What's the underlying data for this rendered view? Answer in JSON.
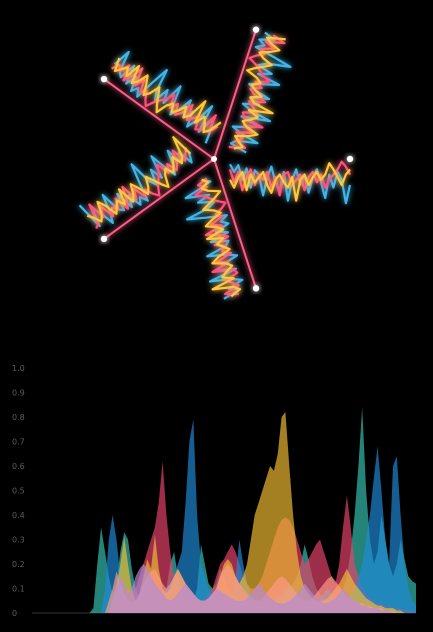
{
  "chart_data": [
    {
      "type": "radial-line",
      "arms": 5,
      "arm_angles_deg": [
        0,
        72,
        144,
        216,
        288
      ],
      "series": [
        {
          "color": "#3fb6e8",
          "values": [
            0.1,
            0.25,
            0.12,
            0.4,
            0.18,
            0.55,
            0.22,
            0.3,
            0.7,
            0.35,
            0.15,
            0.45,
            0.6,
            0.25,
            0.8,
            0.4,
            0.2,
            0.5,
            0.3,
            0.65,
            0.35,
            0.2,
            0.45,
            0.75,
            0.3,
            0.55,
            0.25,
            0.4,
            0.85,
            0.5
          ]
        },
        {
          "color": "#ff4f7a",
          "values": [
            0.05,
            0.15,
            0.3,
            0.2,
            0.45,
            0.25,
            0.6,
            0.35,
            0.2,
            0.5,
            0.3,
            0.4,
            0.25,
            0.55,
            0.35,
            0.7,
            0.3,
            0.25,
            0.5,
            0.4,
            0.3,
            0.6,
            0.35,
            0.25,
            0.45,
            0.3,
            0.55,
            0.4,
            0.3,
            0.2
          ]
        },
        {
          "color": "#ffc640",
          "values": [
            0.08,
            0.2,
            0.35,
            0.5,
            0.3,
            0.2,
            0.4,
            0.55,
            0.35,
            0.25,
            0.6,
            0.3,
            0.45,
            0.35,
            0.25,
            0.5,
            0.65,
            0.4,
            0.3,
            0.45,
            0.55,
            0.35,
            0.8,
            0.4,
            0.3,
            0.5,
            0.35,
            0.25,
            0.4,
            0.3
          ]
        }
      ]
    },
    {
      "type": "area",
      "ylim": [
        0,
        1
      ],
      "yticks": [
        "0",
        "0.1",
        "0.2",
        "0.3",
        "0.4",
        "0.5",
        "0.6",
        "0.7",
        "0.8",
        "0.9",
        "1.0"
      ],
      "x": [
        0,
        1,
        2,
        3,
        4,
        5,
        6,
        7,
        8,
        9,
        10,
        11,
        12,
        13,
        14,
        15,
        16,
        17,
        18,
        19,
        20,
        21,
        22,
        23,
        24,
        25,
        26,
        27,
        28,
        29,
        30,
        31,
        32,
        33,
        34,
        35,
        36,
        37,
        38,
        39,
        40,
        41,
        42,
        43,
        44,
        45,
        46,
        47,
        48,
        49,
        50,
        51,
        52,
        53,
        54,
        55,
        56,
        57,
        58,
        59,
        60,
        61,
        62,
        63,
        64,
        65,
        66,
        67,
        68,
        69,
        70,
        71,
        72,
        73,
        74,
        75,
        76,
        77,
        78,
        79,
        80,
        81,
        82,
        83,
        84,
        85,
        86,
        87,
        88,
        89,
        90,
        91,
        92,
        93,
        94,
        95,
        96,
        97,
        98,
        99,
        100
      ],
      "series": [
        {
          "color": "#36c3b4",
          "values": [
            0,
            0,
            0,
            0,
            0,
            0,
            0,
            0,
            0,
            0,
            0,
            0,
            0,
            0,
            0,
            0,
            0.02,
            0.2,
            0.35,
            0.25,
            0.15,
            0.08,
            0.12,
            0.25,
            0.33,
            0.3,
            0.18,
            0.1,
            0.05,
            0.03,
            0.02,
            0.02,
            0.02,
            0.03,
            0.05,
            0.1,
            0.2,
            0.25,
            0.15,
            0.08,
            0.05,
            0.04,
            0.05,
            0.1,
            0.28,
            0.2,
            0.12,
            0.1,
            0.12,
            0.18,
            0.15,
            0.1,
            0.08,
            0.06,
            0.05,
            0.05,
            0.05,
            0.05,
            0.05,
            0.05,
            0.05,
            0.05,
            0.05,
            0.05,
            0.05,
            0.06,
            0.08,
            0.1,
            0.12,
            0.15,
            0.2,
            0.28,
            0.22,
            0.15,
            0.1,
            0.08,
            0.06,
            0.05,
            0.05,
            0.06,
            0.08,
            0.1,
            0.15,
            0.25,
            0.4,
            0.6,
            0.84,
            0.5,
            0.3,
            0.2,
            0.25,
            0.4,
            0.3,
            0.2,
            0.15,
            0.2,
            0.3,
            0.22,
            0.15,
            0.13,
            0.12
          ]
        },
        {
          "color": "#e8436a",
          "values": [
            0,
            0,
            0,
            0,
            0,
            0,
            0,
            0,
            0,
            0,
            0,
            0,
            0,
            0,
            0,
            0,
            0,
            0,
            0,
            0,
            0,
            0,
            0.02,
            0.05,
            0.08,
            0.1,
            0.08,
            0.1,
            0.15,
            0.2,
            0.25,
            0.3,
            0.35,
            0.45,
            0.62,
            0.4,
            0.25,
            0.15,
            0.1,
            0.08,
            0.06,
            0.05,
            0.05,
            0.05,
            0.05,
            0.06,
            0.08,
            0.1,
            0.15,
            0.2,
            0.22,
            0.25,
            0.28,
            0.25,
            0.2,
            0.15,
            0.12,
            0.1,
            0.1,
            0.12,
            0.15,
            0.2,
            0.25,
            0.3,
            0.35,
            0.38,
            0.39,
            0.38,
            0.35,
            0.3,
            0.25,
            0.2,
            0.22,
            0.25,
            0.28,
            0.3,
            0.25,
            0.2,
            0.15,
            0.12,
            0.2,
            0.35,
            0.48,
            0.35,
            0.2,
            0.15,
            0.1,
            0.08,
            0.06,
            0.05,
            0.04,
            0.04,
            0.03,
            0.03,
            0.02,
            0.02,
            0.02,
            0.01,
            0.01,
            0.01,
            0.0
          ]
        },
        {
          "color": "#1f8ad8",
          "values": [
            0,
            0,
            0,
            0,
            0,
            0,
            0,
            0,
            0,
            0,
            0,
            0,
            0,
            0,
            0,
            0,
            0,
            0,
            0,
            0.1,
            0.3,
            0.4,
            0.3,
            0.15,
            0.08,
            0.05,
            0.04,
            0.05,
            0.08,
            0.12,
            0.15,
            0.12,
            0.1,
            0.08,
            0.08,
            0.1,
            0.12,
            0.15,
            0.2,
            0.25,
            0.45,
            0.7,
            0.79,
            0.4,
            0.2,
            0.15,
            0.1,
            0.08,
            0.06,
            0.05,
            0.04,
            0.05,
            0.08,
            0.15,
            0.3,
            0.2,
            0.12,
            0.08,
            0.06,
            0.05,
            0.04,
            0.04,
            0.04,
            0.05,
            0.06,
            0.08,
            0.1,
            0.12,
            0.1,
            0.08,
            0.06,
            0.05,
            0.04,
            0.04,
            0.05,
            0.06,
            0.08,
            0.1,
            0.08,
            0.06,
            0.05,
            0.05,
            0.06,
            0.08,
            0.1,
            0.15,
            0.2,
            0.3,
            0.4,
            0.55,
            0.68,
            0.5,
            0.3,
            0.2,
            0.6,
            0.64,
            0.4,
            0.2,
            0.1,
            0.05,
            0.03
          ]
        },
        {
          "color": "#f1bd33",
          "values": [
            0,
            0,
            0,
            0,
            0,
            0,
            0,
            0,
            0,
            0,
            0,
            0,
            0,
            0,
            0,
            0,
            0,
            0,
            0,
            0,
            0,
            0.05,
            0.1,
            0.2,
            0.31,
            0.2,
            0.1,
            0.05,
            0.08,
            0.15,
            0.22,
            0.18,
            0.32,
            0.18,
            0.1,
            0.08,
            0.1,
            0.15,
            0.18,
            0.15,
            0.12,
            0.1,
            0.08,
            0.06,
            0.05,
            0.05,
            0.06,
            0.08,
            0.1,
            0.15,
            0.2,
            0.22,
            0.2,
            0.15,
            0.12,
            0.15,
            0.2,
            0.3,
            0.4,
            0.45,
            0.5,
            0.55,
            0.6,
            0.58,
            0.65,
            0.8,
            0.82,
            0.6,
            0.4,
            0.25,
            0.15,
            0.1,
            0.08,
            0.06,
            0.05,
            0.05,
            0.05,
            0.06,
            0.08,
            0.1,
            0.12,
            0.15,
            0.18,
            0.15,
            0.12,
            0.1,
            0.08,
            0.06,
            0.05,
            0.04,
            0.03,
            0.03,
            0.02,
            0.02,
            0.02,
            0.01,
            0.01,
            0.0,
            0.0,
            0.0,
            0.0
          ]
        },
        {
          "color": "#ff9a8a",
          "values": [
            0,
            0,
            0,
            0,
            0,
            0,
            0,
            0,
            0,
            0,
            0,
            0,
            0,
            0,
            0,
            0,
            0,
            0,
            0,
            0,
            0.05,
            0.1,
            0.17,
            0.12,
            0.08,
            0.05,
            0.04,
            0.05,
            0.08,
            0.12,
            0.15,
            0.17,
            0.18,
            0.15,
            0.12,
            0.1,
            0.12,
            0.15,
            0.18,
            0.15,
            0.12,
            0.1,
            0.08,
            0.06,
            0.05,
            0.05,
            0.06,
            0.08,
            0.1,
            0.15,
            0.18,
            0.2,
            0.18,
            0.15,
            0.12,
            0.1,
            0.08,
            0.06,
            0.05,
            0.05,
            0.06,
            0.08,
            0.1,
            0.12,
            0.14,
            0.15,
            0.14,
            0.12,
            0.1,
            0.08,
            0.06,
            0.05,
            0.05,
            0.06,
            0.08,
            0.1,
            0.12,
            0.14,
            0.15,
            0.13,
            0.11,
            0.09,
            0.07,
            0.06,
            0.05,
            0.04,
            0.04,
            0.03,
            0.03,
            0.02,
            0.02,
            0.02,
            0.01,
            0.01,
            0.01,
            0.0,
            0.0,
            0.0,
            0.0,
            0.0,
            0.0
          ]
        },
        {
          "color": "#b48ad8",
          "values": [
            0,
            0,
            0,
            0,
            0,
            0,
            0,
            0,
            0,
            0,
            0,
            0,
            0,
            0,
            0,
            0,
            0,
            0,
            0,
            0,
            0,
            0.05,
            0.1,
            0.15,
            0.12,
            0.08,
            0.1,
            0.15,
            0.18,
            0.2,
            0.18,
            0.15,
            0.12,
            0.1,
            0.08,
            0.06,
            0.05,
            0.06,
            0.08,
            0.1,
            0.12,
            0.1,
            0.08,
            0.06,
            0.05,
            0.05,
            0.06,
            0.08,
            0.1,
            0.09,
            0.08,
            0.07,
            0.06,
            0.05,
            0.05,
            0.05,
            0.06,
            0.08,
            0.1,
            0.12,
            0.1,
            0.08,
            0.06,
            0.05,
            0.04,
            0.04,
            0.04,
            0.05,
            0.06,
            0.08,
            0.1,
            0.12,
            0.1,
            0.08,
            0.06,
            0.05,
            0.04,
            0.04,
            0.05,
            0.06,
            0.08,
            0.1,
            0.08,
            0.06,
            0.05,
            0.04,
            0.03,
            0.03,
            0.02,
            0.02,
            0.02,
            0.01,
            0.01,
            0.01,
            0.0,
            0.0,
            0.0,
            0.0,
            0.0,
            0.0,
            0.0
          ]
        }
      ]
    }
  ]
}
